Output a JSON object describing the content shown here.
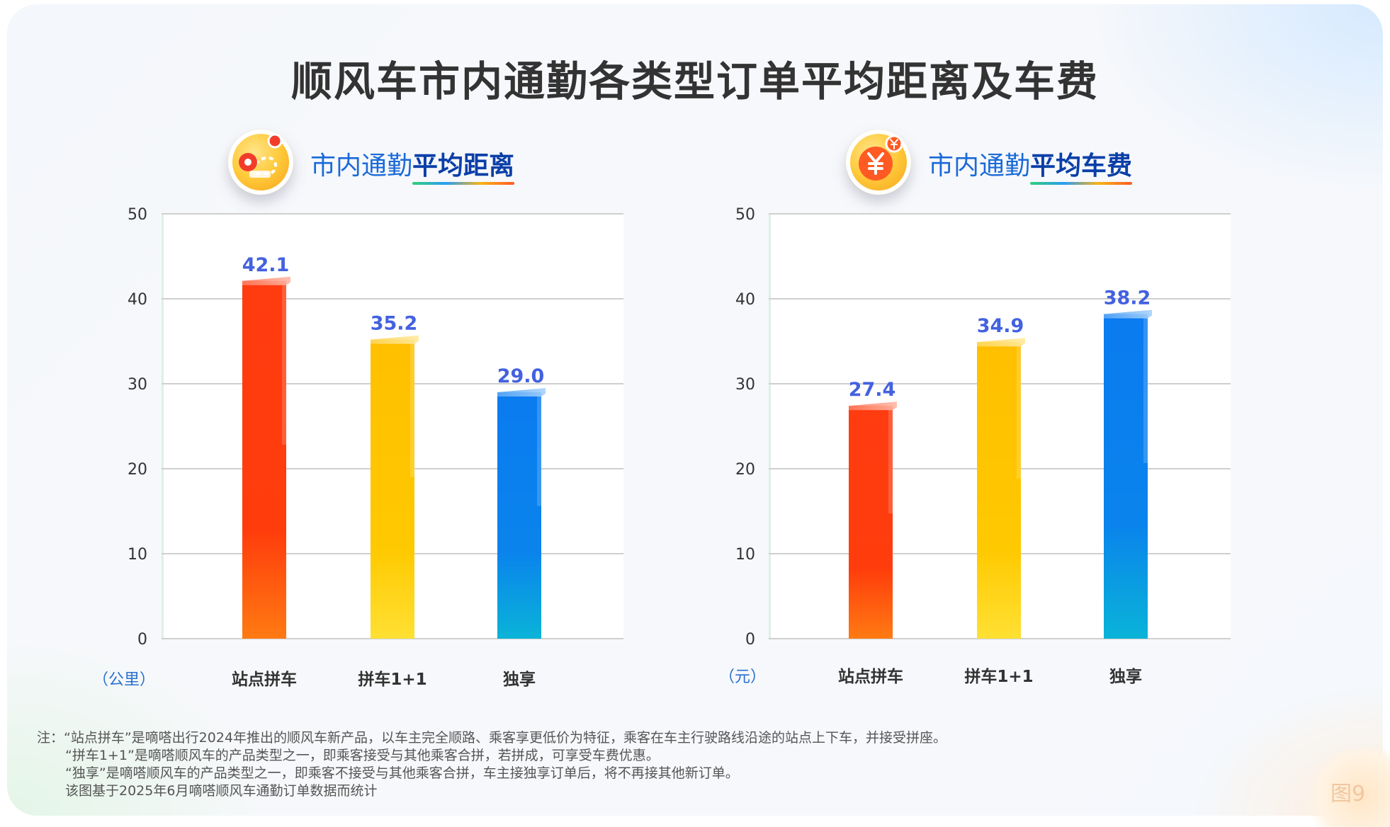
{
  "title": "顺风车市内通勤各类型订单平均距离及车费",
  "panels": [
    {
      "head_prefix": "市内通勤",
      "head_strong": "平均距离",
      "icon": "route-map-pin-icon"
    },
    {
      "head_prefix": "市内通勤",
      "head_strong": "平均车费",
      "icon": "yuan-coin-icon"
    }
  ],
  "colors": {
    "red_top": "#ff3b10",
    "red_bottom": "#ff7a12",
    "yellow_top": "#ffbf00",
    "yellow_bottom": "#ffe033",
    "blue_top": "#0a7bf0",
    "blue_bottom": "#0ab3d8",
    "label": "#4361e0",
    "grid": "#cfcfcf"
  },
  "chart_data": [
    {
      "type": "bar",
      "title": "市内通勤平均距离",
      "categories": [
        "站点拼车",
        "拼车1+1",
        "独享"
      ],
      "values": [
        42.1,
        35.2,
        29.0
      ],
      "value_labels": [
        "42.1",
        "35.2",
        "29.0"
      ],
      "unit_label": "（公里）",
      "yticks": [
        "0",
        "10",
        "20",
        "30",
        "40",
        "50"
      ],
      "ylim": [
        0,
        50
      ],
      "grid": true
    },
    {
      "type": "bar",
      "title": "市内通勤平均车费",
      "categories": [
        "站点拼车",
        "拼车1+1",
        "独享"
      ],
      "values": [
        27.4,
        34.9,
        38.2
      ],
      "value_labels": [
        "27.4",
        "34.9",
        "38.2"
      ],
      "unit_label": "（元）",
      "yticks": [
        "0",
        "10",
        "20",
        "30",
        "40",
        "50"
      ],
      "ylim": [
        0,
        50
      ],
      "grid": true
    }
  ],
  "notes": [
    "注：“站点拼车”是嘀嗒出行2024年推出的顺风车新产品，以车主完全顺路、乘客享更低价为特征，乘客在车主行驶路线沿途的站点上下车，并接受拼座。",
    "“拼车1+1”是嘀嗒顺风车的产品类型之一，即乘客接受与其他乘客合拼，若拼成，可享受车费优惠。",
    "“独享”是嘀嗒顺风车的产品类型之一，即乘客不接受与其他乘客合拼，车主接独享订单后，将不再接其他新订单。",
    "该图基于2025年6月嘀嗒顺风车通勤订单数据而统计"
  ],
  "figure_label": "图9"
}
